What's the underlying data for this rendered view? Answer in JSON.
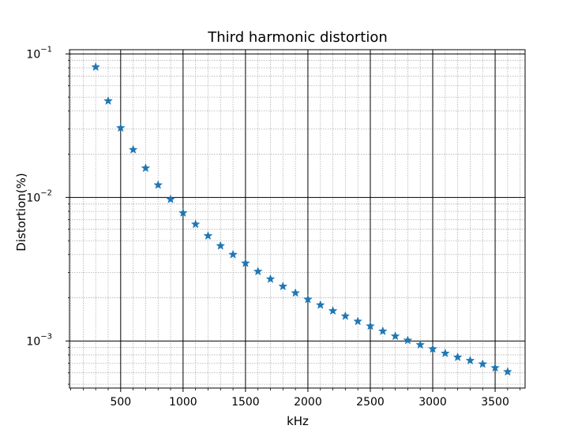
{
  "chart_data": {
    "type": "scatter",
    "title": "Third harmonic distortion",
    "xlabel": "kHz",
    "ylabel": "Distortion(%)",
    "xlim": [
      90,
      3740
    ],
    "ylim": [
      0.00047,
      0.107
    ],
    "yscale": "log",
    "grid": {
      "major": true,
      "minor": true
    },
    "marker": "star",
    "marker_color": "#1f77b4",
    "x_ticks": [
      500,
      1000,
      1500,
      2000,
      2500,
      3000,
      3500
    ],
    "x_tick_labels": [
      "500",
      "1000",
      "1500",
      "2000",
      "2500",
      "3000",
      "3500"
    ],
    "y_ticks": [
      {
        "value": 0.1,
        "base": "10",
        "exp": "−1"
      },
      {
        "value": 0.01,
        "base": "10",
        "exp": "−2"
      },
      {
        "value": 0.001,
        "base": "10",
        "exp": "−3"
      }
    ],
    "x": [
      300,
      400,
      500,
      600,
      700,
      800,
      900,
      1000,
      1100,
      1200,
      1300,
      1400,
      1500,
      1600,
      1700,
      1800,
      1900,
      2000,
      2100,
      2200,
      2300,
      2400,
      2500,
      2600,
      2700,
      2800,
      2900,
      3000,
      3100,
      3200,
      3300,
      3400,
      3500,
      3600
    ],
    "y": [
      0.081,
      0.047,
      0.0305,
      0.0215,
      0.016,
      0.0122,
      0.0097,
      0.0078,
      0.0065,
      0.0054,
      0.0046,
      0.004,
      0.00348,
      0.00305,
      0.0027,
      0.0024,
      0.00216,
      0.00195,
      0.00178,
      0.00162,
      0.00149,
      0.00137,
      0.00127,
      0.00117,
      0.00108,
      0.00101,
      0.00094,
      0.00088,
      0.00082,
      0.00077,
      0.00073,
      0.00069,
      0.00065,
      0.00061
    ]
  }
}
